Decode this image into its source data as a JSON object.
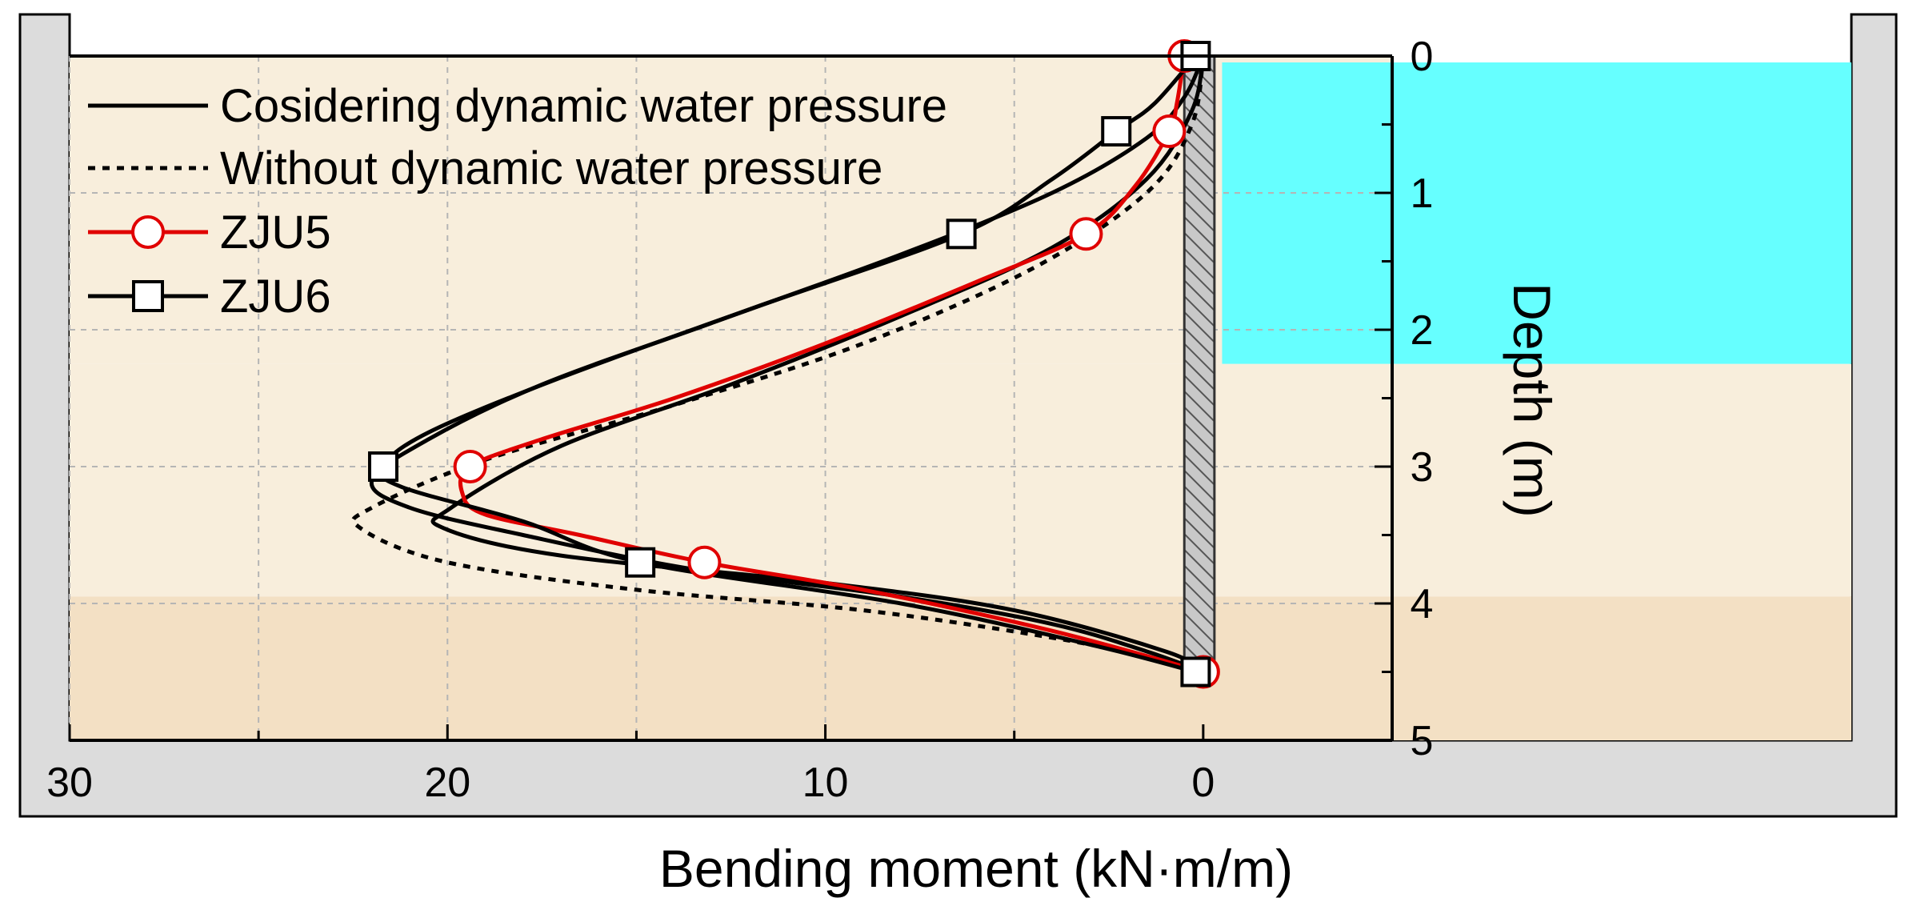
{
  "chart_data": {
    "type": "line",
    "xlabel": "Bending moment (kN·m/m)",
    "ylabel": "Depth (m)",
    "xlim": [
      30,
      -5
    ],
    "ylim": [
      0,
      5
    ],
    "x_ticks": [
      30,
      20,
      10,
      0
    ],
    "y_ticks": [
      0,
      1,
      2,
      3,
      4,
      5
    ],
    "grid": true,
    "layers": [
      {
        "name": "water",
        "depth_from": 0,
        "depth_to": 2.25,
        "color": "#66ffff"
      },
      {
        "name": "upper-soil",
        "depth_from": 2.25,
        "depth_to": 3.95,
        "color": "#f8eedc"
      },
      {
        "name": "lower-soil",
        "depth_from": 3.95,
        "depth_to": 5,
        "color": "#f3e0c4"
      }
    ],
    "wall": {
      "depth_from": 0,
      "depth_to": 4.5,
      "x_from": 0,
      "x_to": 0.5
    },
    "series": [
      {
        "name": "Cosidering dynamic water pressure",
        "style": "solid",
        "color": "#000000",
        "curves": [
          [
            [
              0,
              0
            ],
            [
              0.3,
              0.4
            ],
            [
              1.5,
              0.9
            ],
            [
              4,
              1.4
            ],
            [
              8,
              1.9
            ],
            [
              12.5,
              2.4
            ],
            [
              17,
              2.85
            ],
            [
              19.9,
              3.3
            ],
            [
              20.1,
              3.45
            ],
            [
              17,
              3.65
            ],
            [
              10,
              3.85
            ],
            [
              5,
              4.05
            ],
            [
              1,
              4.35
            ],
            [
              0,
              4.5
            ]
          ],
          [
            [
              0,
              0
            ],
            [
              0.5,
              0.3
            ],
            [
              1.5,
              0.6
            ],
            [
              4,
              1.0
            ],
            [
              8,
              1.45
            ],
            [
              13,
              1.95
            ],
            [
              17.5,
              2.4
            ],
            [
              20.5,
              2.8
            ],
            [
              22,
              3.1
            ],
            [
              21,
              3.3
            ],
            [
              18,
              3.5
            ],
            [
              13.5,
              3.75
            ],
            [
              8,
              3.95
            ],
            [
              4,
              4.15
            ],
            [
              1.5,
              4.35
            ],
            [
              0,
              4.5
            ]
          ]
        ]
      },
      {
        "name": "Without dynamic water pressure",
        "style": "dotted",
        "color": "#000000",
        "curves": [
          [
            [
              0,
              0
            ],
            [
              0.3,
              0.5
            ],
            [
              1.5,
              1.0
            ],
            [
              4.5,
              1.55
            ],
            [
              9,
              2.1
            ],
            [
              14,
              2.55
            ],
            [
              19,
              2.95
            ],
            [
              22,
              3.3
            ],
            [
              22.3,
              3.45
            ],
            [
              20,
              3.7
            ],
            [
              15,
              3.9
            ],
            [
              9,
              4.05
            ],
            [
              4,
              4.25
            ],
            [
              1,
              4.42
            ],
            [
              0,
              4.5
            ]
          ]
        ]
      },
      {
        "name": "ZJU5",
        "style": "solid",
        "color": "#e00000",
        "marker": "circle",
        "points": [
          [
            0.5,
            0
          ],
          [
            0.9,
            0.55
          ],
          [
            3.1,
            1.3
          ],
          [
            19.4,
            3.0
          ],
          [
            13.2,
            3.7
          ],
          [
            0,
            4.5
          ]
        ],
        "curve": [
          [
            0.5,
            0
          ],
          [
            0.7,
            0.35
          ],
          [
            0.9,
            0.55
          ],
          [
            1.8,
            0.95
          ],
          [
            3.1,
            1.3
          ],
          [
            6,
            1.65
          ],
          [
            10,
            2.1
          ],
          [
            14,
            2.5
          ],
          [
            17.5,
            2.8
          ],
          [
            19.4,
            3.0
          ],
          [
            19.6,
            3.2
          ],
          [
            19,
            3.35
          ],
          [
            16.5,
            3.5
          ],
          [
            13.2,
            3.7
          ],
          [
            9,
            3.9
          ],
          [
            4,
            4.2
          ],
          [
            0,
            4.5
          ]
        ]
      },
      {
        "name": "ZJU6",
        "style": "solid",
        "color": "#000000",
        "marker": "square",
        "points": [
          [
            0.2,
            0
          ],
          [
            2.3,
            0.55
          ],
          [
            6.4,
            1.3
          ],
          [
            21.7,
            3.0
          ],
          [
            14.9,
            3.7
          ],
          [
            0.2,
            4.5
          ]
        ],
        "curve": [
          [
            0.2,
            0
          ],
          [
            1.3,
            0.35
          ],
          [
            2.3,
            0.55
          ],
          [
            4,
            0.9
          ],
          [
            6.4,
            1.3
          ],
          [
            12,
            1.85
          ],
          [
            17,
            2.35
          ],
          [
            20.5,
            2.75
          ],
          [
            21.7,
            3.0
          ],
          [
            21.2,
            3.15
          ],
          [
            18,
            3.4
          ],
          [
            14.9,
            3.7
          ],
          [
            8,
            4.0
          ],
          [
            3,
            4.3
          ],
          [
            0.2,
            4.5
          ]
        ]
      }
    ]
  }
}
